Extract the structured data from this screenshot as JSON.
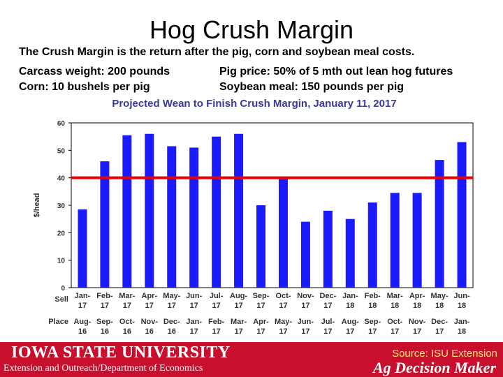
{
  "slide": {
    "title": "Hog Crush Margin",
    "line1": "The Crush Margin is the return after the pig, corn and soybean meal costs.",
    "line2_left": "Carcass weight:  200 pounds",
    "line2_right": "Pig price:  50% of 5 mth out lean hog futures",
    "line3_left": "Corn:  10 bushels per pig",
    "line3_right": "Soybean meal:  150 pounds per pig"
  },
  "footer": {
    "university": "IOWA STATE UNIVERSITY",
    "department": "Extension and Outreach/Department of Economics",
    "source": "Source: ISU Extension",
    "brand": "Ag Decision Maker"
  },
  "colors": {
    "bar": "#1a1aff",
    "reference_line": "#ee0000",
    "footer_bg": "#c8102e",
    "chart_title": "#3a3a9a"
  },
  "chart_data": {
    "type": "bar",
    "title": "Projected Wean to Finish Crush Margin, January 11, 2017",
    "ylabel": "$/head",
    "ylim": [
      0,
      60
    ],
    "yticks": [
      0,
      10,
      20,
      30,
      40,
      50,
      60
    ],
    "grid": false,
    "row_labels": [
      "Sell",
      "Place"
    ],
    "sell": [
      "Jan-17",
      "Feb-17",
      "Mar-17",
      "Apr-17",
      "May-17",
      "Jun-17",
      "Jul-17",
      "Aug-17",
      "Sep-17",
      "Oct-17",
      "Nov-17",
      "Dec-17",
      "Jan-18",
      "Feb-18",
      "Mar-18",
      "Apr-18",
      "May-18",
      "Jun-18"
    ],
    "place": [
      "Aug-16",
      "Sep-16",
      "Oct-16",
      "Nov-16",
      "Dec-16",
      "Jan-17",
      "Feb-17",
      "Mar-17",
      "Apr-17",
      "May-17",
      "Jun-17",
      "Jul-17",
      "Aug-17",
      "Sep-17",
      "Oct-17",
      "Nov-17",
      "Dec-17",
      "Jan-18"
    ],
    "values": [
      28.5,
      46,
      55.5,
      56,
      51.5,
      51,
      55,
      56,
      30,
      39.5,
      24,
      28,
      25,
      31,
      34.5,
      34.5,
      46.5,
      53
    ],
    "reference_line": 40
  }
}
